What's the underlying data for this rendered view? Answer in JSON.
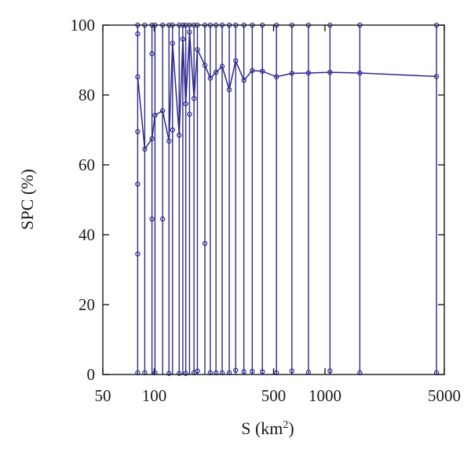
{
  "chart_data": {
    "type": "line",
    "x_scale": "log",
    "xlabel": "S (km",
    "xlabel_sup": "2",
    "xlabel_close": ")",
    "ylabel": "SPC (%)",
    "xlim": [
      50,
      5000
    ],
    "ylim": [
      0,
      100
    ],
    "x_ticks": [
      50,
      100,
      500,
      1000,
      5000
    ],
    "x_tick_labels": [
      "50",
      "100",
      "500",
      "1000",
      "5000"
    ],
    "y_ticks": [
      0,
      20,
      40,
      60,
      80,
      100
    ],
    "y_tick_labels": [
      "0",
      "20",
      "40",
      "60",
      "80",
      "100"
    ],
    "grid": false,
    "series_color": "#2e2a8c",
    "stations": [
      {
        "x": 80,
        "points": [
          0.5,
          34.5,
          54.5,
          69.5,
          85.2,
          97.5,
          100
        ]
      },
      {
        "x": 88,
        "points": [
          0.5,
          64.5,
          100
        ]
      },
      {
        "x": 97,
        "points": [
          44.5,
          67.5,
          91.8,
          100
        ]
      },
      {
        "x": 101,
        "points": [
          0.5,
          74.2,
          100
        ]
      },
      {
        "x": 112,
        "points": [
          44.5,
          75.5,
          100
        ]
      },
      {
        "x": 122,
        "points": [
          0.3,
          66.8,
          100
        ]
      },
      {
        "x": 128,
        "points": [
          70,
          94.8,
          100
        ]
      },
      {
        "x": 140,
        "points": [
          0.3,
          68.5,
          100
        ]
      },
      {
        "x": 147,
        "points": [
          96,
          100
        ]
      },
      {
        "x": 153,
        "points": [
          0.3,
          77.5,
          100
        ]
      },
      {
        "x": 161,
        "points": [
          74.5,
          98,
          100
        ]
      },
      {
        "x": 171,
        "points": [
          0.5,
          79,
          100
        ]
      },
      {
        "x": 179,
        "points": [
          1,
          93,
          100
        ]
      },
      {
        "x": 198,
        "points": [
          37.5,
          88.5,
          100
        ]
      },
      {
        "x": 213,
        "points": [
          0.5,
          84.8,
          100
        ]
      },
      {
        "x": 230,
        "points": [
          0.5,
          86.5,
          100
        ]
      },
      {
        "x": 250,
        "points": [
          0.5,
          88.2,
          100
        ]
      },
      {
        "x": 275,
        "points": [
          0.5,
          81.5,
          100
        ]
      },
      {
        "x": 300,
        "points": [
          1.2,
          89.8,
          100
        ]
      },
      {
        "x": 335,
        "points": [
          0.8,
          84.2,
          100
        ]
      },
      {
        "x": 375,
        "points": [
          0.9,
          87,
          100
        ]
      },
      {
        "x": 430,
        "points": [
          0.8,
          86.8,
          100
        ]
      },
      {
        "x": 520,
        "points": [
          0.5,
          85.2,
          100
        ]
      },
      {
        "x": 640,
        "points": [
          1,
          86.2,
          100
        ]
      },
      {
        "x": 800,
        "points": [
          0.6,
          86.3,
          100
        ]
      },
      {
        "x": 1070,
        "points": [
          1,
          86.5,
          100
        ]
      },
      {
        "x": 1600,
        "points": [
          0.5,
          86.3,
          100
        ]
      },
      {
        "x": 4500,
        "points": [
          0.5,
          85.3,
          100
        ]
      }
    ],
    "main_line": [
      [
        80,
        85.2
      ],
      [
        88,
        64.5
      ],
      [
        97,
        67.5
      ],
      [
        101,
        74.2
      ],
      [
        112,
        75.5
      ],
      [
        122,
        66.8
      ],
      [
        128,
        94.8
      ],
      [
        140,
        68.5
      ],
      [
        147,
        96
      ],
      [
        153,
        77.5
      ],
      [
        161,
        98
      ],
      [
        171,
        79
      ],
      [
        179,
        93
      ],
      [
        198,
        88.5
      ],
      [
        213,
        84.8
      ],
      [
        230,
        86.5
      ],
      [
        250,
        88.2
      ],
      [
        275,
        81.5
      ],
      [
        300,
        89.8
      ],
      [
        335,
        84.2
      ],
      [
        375,
        87
      ],
      [
        430,
        86.8
      ],
      [
        520,
        85.2
      ],
      [
        640,
        86.2
      ],
      [
        800,
        86.3
      ],
      [
        1070,
        86.5
      ],
      [
        1600,
        86.3
      ],
      [
        4500,
        85.3
      ]
    ]
  }
}
